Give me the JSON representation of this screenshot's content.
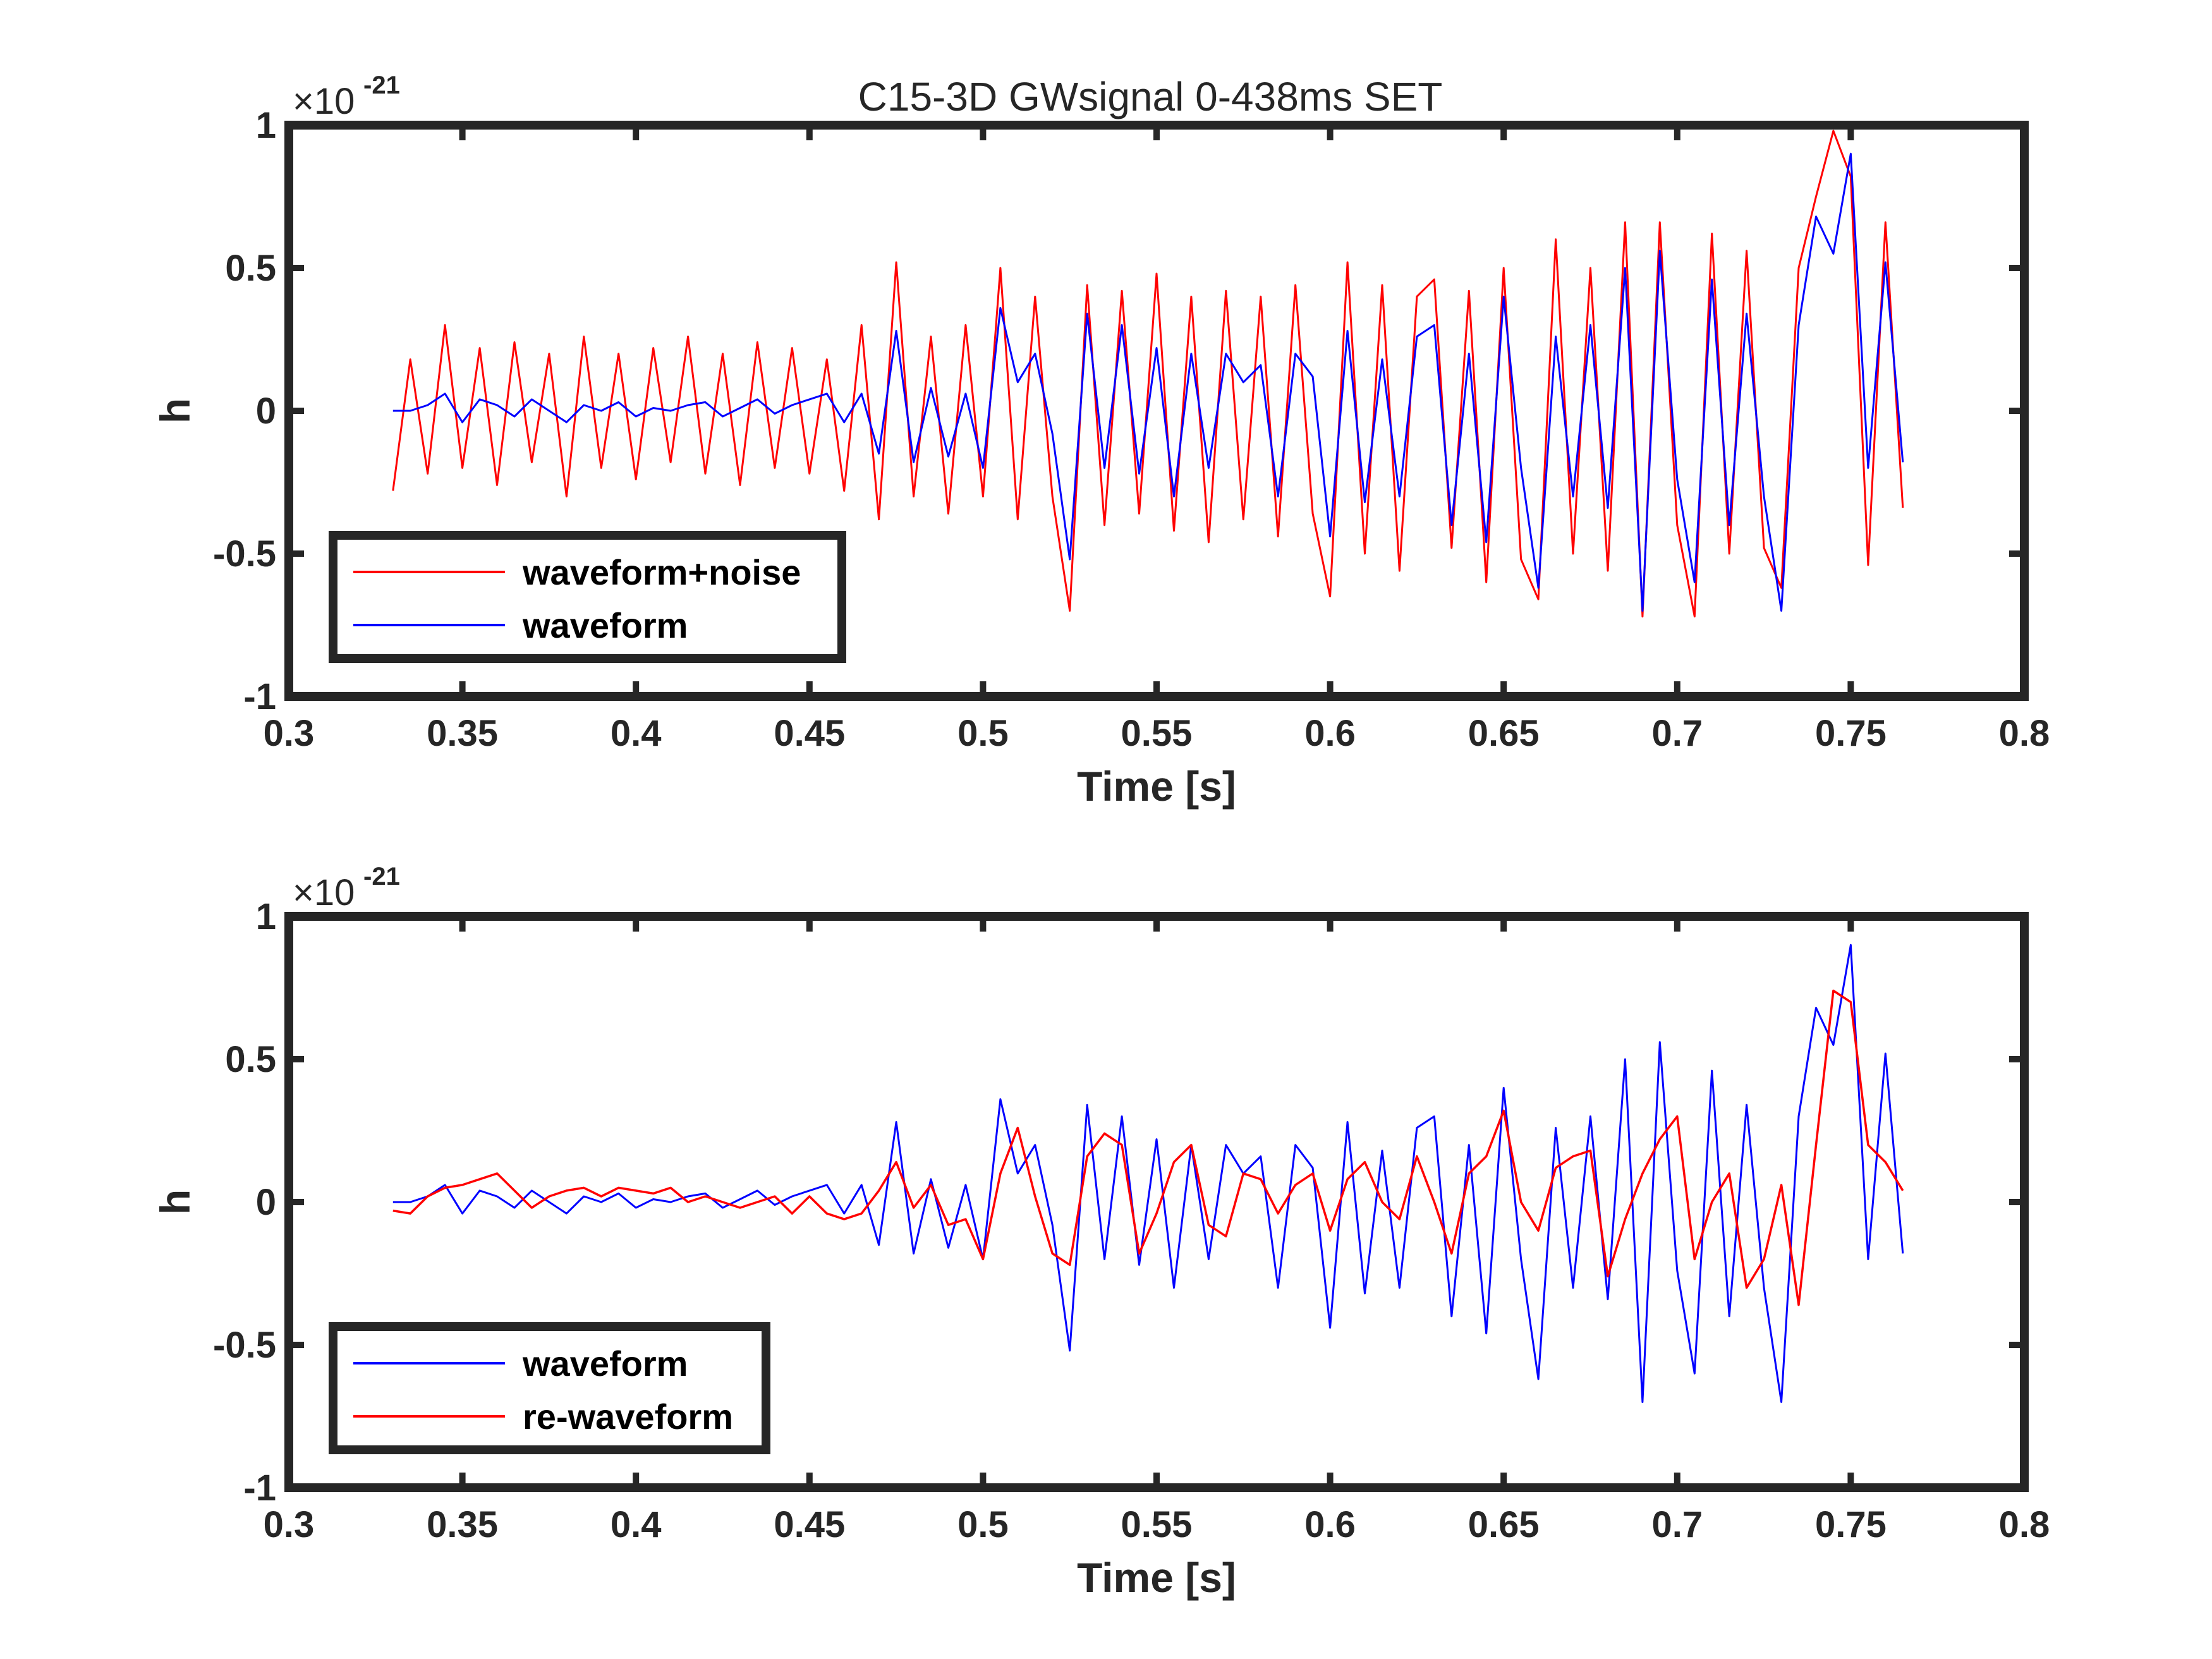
{
  "figure": {
    "title": "C15-3D GWsignal 0-438ms SET"
  },
  "colors": {
    "noisy": "#ff0000",
    "waveform": "#0000ff",
    "rewaveform": "#ff0000",
    "axes": "#262626"
  },
  "chart_data": [
    {
      "type": "line",
      "title": "C15-3D GWsignal 0-438ms SET",
      "xlabel": "Time [s]",
      "ylabel": "h",
      "y_multiplier_base": "×10",
      "y_multiplier_exp": "-21",
      "xlim": [
        0.3,
        0.8
      ],
      "ylim": [
        -1,
        1
      ],
      "xticks": [
        "0.3",
        "0.35",
        "0.4",
        "0.45",
        "0.5",
        "0.55",
        "0.6",
        "0.65",
        "0.7",
        "0.75",
        "0.8"
      ],
      "yticks": [
        "-1",
        "-0.5",
        "0",
        "0.5",
        "1"
      ],
      "legend_position": "bottom-left",
      "series": [
        {
          "name": "waveform+noise",
          "color": "#ff0000",
          "x": [
            0.33,
            0.335,
            0.34,
            0.345,
            0.35,
            0.355,
            0.36,
            0.365,
            0.37,
            0.375,
            0.38,
            0.385,
            0.39,
            0.395,
            0.4,
            0.405,
            0.41,
            0.415,
            0.42,
            0.425,
            0.43,
            0.435,
            0.44,
            0.445,
            0.45,
            0.455,
            0.46,
            0.465,
            0.47,
            0.475,
            0.48,
            0.485,
            0.49,
            0.495,
            0.5,
            0.505,
            0.51,
            0.515,
            0.52,
            0.525,
            0.53,
            0.535,
            0.54,
            0.545,
            0.55,
            0.555,
            0.56,
            0.565,
            0.57,
            0.575,
            0.58,
            0.585,
            0.59,
            0.595,
            0.6,
            0.605,
            0.61,
            0.615,
            0.62,
            0.625,
            0.63,
            0.635,
            0.64,
            0.645,
            0.65,
            0.655,
            0.66,
            0.665,
            0.67,
            0.675,
            0.68,
            0.685,
            0.69,
            0.695,
            0.7,
            0.705,
            0.71,
            0.715,
            0.72,
            0.725,
            0.73,
            0.735,
            0.74,
            0.745,
            0.75,
            0.755,
            0.76,
            0.765
          ],
          "y": [
            -0.28,
            0.18,
            -0.22,
            0.3,
            -0.2,
            0.22,
            -0.26,
            0.24,
            -0.18,
            0.2,
            -0.3,
            0.26,
            -0.2,
            0.2,
            -0.24,
            0.22,
            -0.18,
            0.26,
            -0.22,
            0.2,
            -0.26,
            0.24,
            -0.2,
            0.22,
            -0.22,
            0.18,
            -0.28,
            0.3,
            -0.38,
            0.52,
            -0.3,
            0.26,
            -0.36,
            0.3,
            -0.3,
            0.5,
            -0.38,
            0.4,
            -0.3,
            -0.7,
            0.44,
            -0.4,
            0.42,
            -0.36,
            0.48,
            -0.42,
            0.4,
            -0.46,
            0.42,
            -0.38,
            0.4,
            -0.44,
            0.44,
            -0.36,
            -0.65,
            0.52,
            -0.5,
            0.44,
            -0.56,
            0.4,
            0.46,
            -0.48,
            0.42,
            -0.6,
            0.5,
            -0.52,
            -0.66,
            0.6,
            -0.5,
            0.5,
            -0.56,
            0.66,
            -0.72,
            0.66,
            -0.4,
            -0.72,
            0.62,
            -0.5,
            0.56,
            -0.48,
            -0.62,
            0.5,
            0.75,
            0.98,
            0.82,
            -0.54,
            0.66,
            -0.34
          ]
        },
        {
          "name": "waveform",
          "color": "#0000ff",
          "x": [
            0.33,
            0.335,
            0.34,
            0.345,
            0.35,
            0.355,
            0.36,
            0.365,
            0.37,
            0.375,
            0.38,
            0.385,
            0.39,
            0.395,
            0.4,
            0.405,
            0.41,
            0.415,
            0.42,
            0.425,
            0.43,
            0.435,
            0.44,
            0.445,
            0.45,
            0.455,
            0.46,
            0.465,
            0.47,
            0.475,
            0.48,
            0.485,
            0.49,
            0.495,
            0.5,
            0.505,
            0.51,
            0.515,
            0.52,
            0.525,
            0.53,
            0.535,
            0.54,
            0.545,
            0.55,
            0.555,
            0.56,
            0.565,
            0.57,
            0.575,
            0.58,
            0.585,
            0.59,
            0.595,
            0.6,
            0.605,
            0.61,
            0.615,
            0.62,
            0.625,
            0.63,
            0.635,
            0.64,
            0.645,
            0.65,
            0.655,
            0.66,
            0.665,
            0.67,
            0.675,
            0.68,
            0.685,
            0.69,
            0.695,
            0.7,
            0.705,
            0.71,
            0.715,
            0.72,
            0.725,
            0.73,
            0.735,
            0.74,
            0.745,
            0.75,
            0.755,
            0.76,
            0.765
          ],
          "y": [
            0.0,
            0.0,
            0.02,
            0.06,
            -0.04,
            0.04,
            0.02,
            -0.02,
            0.04,
            0.0,
            -0.04,
            0.02,
            0.0,
            0.03,
            -0.02,
            0.01,
            0.0,
            0.02,
            0.03,
            -0.02,
            0.01,
            0.04,
            -0.01,
            0.02,
            0.04,
            0.06,
            -0.04,
            0.06,
            -0.15,
            0.28,
            -0.18,
            0.08,
            -0.16,
            0.06,
            -0.2,
            0.36,
            0.1,
            0.2,
            -0.08,
            -0.52,
            0.34,
            -0.2,
            0.3,
            -0.22,
            0.22,
            -0.3,
            0.2,
            -0.2,
            0.2,
            0.1,
            0.16,
            -0.3,
            0.2,
            0.12,
            -0.44,
            0.28,
            -0.32,
            0.18,
            -0.3,
            0.26,
            0.3,
            -0.4,
            0.2,
            -0.46,
            0.4,
            -0.2,
            -0.62,
            0.26,
            -0.3,
            0.3,
            -0.34,
            0.5,
            -0.7,
            0.56,
            -0.24,
            -0.6,
            0.46,
            -0.4,
            0.34,
            -0.3,
            -0.7,
            0.3,
            0.68,
            0.55,
            0.9,
            -0.2,
            0.52,
            -0.18
          ]
        }
      ]
    },
    {
      "type": "line",
      "title": "",
      "xlabel": "Time [s]",
      "ylabel": "h",
      "y_multiplier_base": "×10",
      "y_multiplier_exp": "-21",
      "xlim": [
        0.3,
        0.8
      ],
      "ylim": [
        -1,
        1
      ],
      "xticks": [
        "0.3",
        "0.35",
        "0.4",
        "0.45",
        "0.5",
        "0.55",
        "0.6",
        "0.65",
        "0.7",
        "0.75",
        "0.8"
      ],
      "yticks": [
        "-1",
        "-0.5",
        "0",
        "0.5",
        "1"
      ],
      "legend_position": "bottom-left",
      "series": [
        {
          "name": "waveform",
          "color": "#0000ff",
          "x": [
            0.33,
            0.335,
            0.34,
            0.345,
            0.35,
            0.355,
            0.36,
            0.365,
            0.37,
            0.375,
            0.38,
            0.385,
            0.39,
            0.395,
            0.4,
            0.405,
            0.41,
            0.415,
            0.42,
            0.425,
            0.43,
            0.435,
            0.44,
            0.445,
            0.45,
            0.455,
            0.46,
            0.465,
            0.47,
            0.475,
            0.48,
            0.485,
            0.49,
            0.495,
            0.5,
            0.505,
            0.51,
            0.515,
            0.52,
            0.525,
            0.53,
            0.535,
            0.54,
            0.545,
            0.55,
            0.555,
            0.56,
            0.565,
            0.57,
            0.575,
            0.58,
            0.585,
            0.59,
            0.595,
            0.6,
            0.605,
            0.61,
            0.615,
            0.62,
            0.625,
            0.63,
            0.635,
            0.64,
            0.645,
            0.65,
            0.655,
            0.66,
            0.665,
            0.67,
            0.675,
            0.68,
            0.685,
            0.69,
            0.695,
            0.7,
            0.705,
            0.71,
            0.715,
            0.72,
            0.725,
            0.73,
            0.735,
            0.74,
            0.745,
            0.75,
            0.755,
            0.76,
            0.765
          ],
          "y": [
            0.0,
            0.0,
            0.02,
            0.06,
            -0.04,
            0.04,
            0.02,
            -0.02,
            0.04,
            0.0,
            -0.04,
            0.02,
            0.0,
            0.03,
            -0.02,
            0.01,
            0.0,
            0.02,
            0.03,
            -0.02,
            0.01,
            0.04,
            -0.01,
            0.02,
            0.04,
            0.06,
            -0.04,
            0.06,
            -0.15,
            0.28,
            -0.18,
            0.08,
            -0.16,
            0.06,
            -0.2,
            0.36,
            0.1,
            0.2,
            -0.08,
            -0.52,
            0.34,
            -0.2,
            0.3,
            -0.22,
            0.22,
            -0.3,
            0.2,
            -0.2,
            0.2,
            0.1,
            0.16,
            -0.3,
            0.2,
            0.12,
            -0.44,
            0.28,
            -0.32,
            0.18,
            -0.3,
            0.26,
            0.3,
            -0.4,
            0.2,
            -0.46,
            0.4,
            -0.2,
            -0.62,
            0.26,
            -0.3,
            0.3,
            -0.34,
            0.5,
            -0.7,
            0.56,
            -0.24,
            -0.6,
            0.46,
            -0.4,
            0.34,
            -0.3,
            -0.7,
            0.3,
            0.68,
            0.55,
            0.9,
            -0.2,
            0.52,
            -0.18
          ]
        },
        {
          "name": "re-waveform",
          "color": "#ff0000",
          "x": [
            0.33,
            0.335,
            0.34,
            0.345,
            0.35,
            0.355,
            0.36,
            0.365,
            0.37,
            0.375,
            0.38,
            0.385,
            0.39,
            0.395,
            0.4,
            0.405,
            0.41,
            0.415,
            0.42,
            0.425,
            0.43,
            0.435,
            0.44,
            0.445,
            0.45,
            0.455,
            0.46,
            0.465,
            0.47,
            0.475,
            0.48,
            0.485,
            0.49,
            0.495,
            0.5,
            0.505,
            0.51,
            0.515,
            0.52,
            0.525,
            0.53,
            0.535,
            0.54,
            0.545,
            0.55,
            0.555,
            0.56,
            0.565,
            0.57,
            0.575,
            0.58,
            0.585,
            0.59,
            0.595,
            0.6,
            0.605,
            0.61,
            0.615,
            0.62,
            0.625,
            0.63,
            0.635,
            0.64,
            0.645,
            0.65,
            0.655,
            0.66,
            0.665,
            0.67,
            0.675,
            0.68,
            0.685,
            0.69,
            0.695,
            0.7,
            0.705,
            0.71,
            0.715,
            0.72,
            0.725,
            0.73,
            0.735,
            0.74,
            0.745,
            0.75,
            0.755,
            0.76,
            0.765
          ],
          "y": [
            -0.03,
            -0.04,
            0.02,
            0.05,
            0.06,
            0.08,
            0.1,
            0.04,
            -0.02,
            0.02,
            0.04,
            0.05,
            0.02,
            0.05,
            0.04,
            0.03,
            0.05,
            0.0,
            0.02,
            0.0,
            -0.02,
            0.0,
            0.02,
            -0.04,
            0.02,
            -0.04,
            -0.06,
            -0.04,
            0.04,
            0.14,
            -0.02,
            0.06,
            -0.08,
            -0.06,
            -0.2,
            0.1,
            0.26,
            0.02,
            -0.18,
            -0.22,
            0.16,
            0.24,
            0.2,
            -0.18,
            -0.04,
            0.14,
            0.2,
            -0.08,
            -0.12,
            0.1,
            0.08,
            -0.04,
            0.06,
            0.1,
            -0.1,
            0.08,
            0.14,
            0.0,
            -0.06,
            0.16,
            0.0,
            -0.18,
            0.1,
            0.16,
            0.32,
            0.0,
            -0.1,
            0.12,
            0.16,
            0.18,
            -0.26,
            -0.06,
            0.1,
            0.22,
            0.3,
            -0.2,
            0.0,
            0.1,
            -0.3,
            -0.2,
            0.06,
            -0.36,
            0.2,
            0.74,
            0.7,
            0.2,
            0.14,
            0.04
          ]
        }
      ]
    }
  ]
}
